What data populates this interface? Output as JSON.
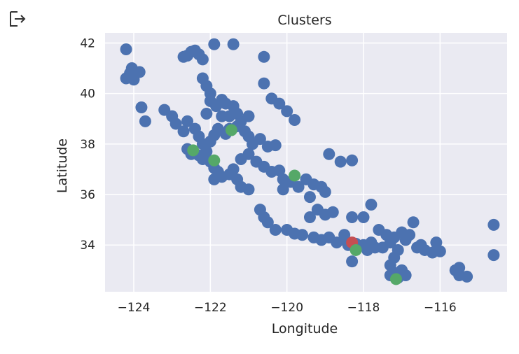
{
  "cell": {
    "output_icon": "output-arrow-icon"
  },
  "chart_data": {
    "type": "scatter",
    "title": "Clusters",
    "xlabel": "Longitude",
    "ylabel": "Latitude",
    "xlim": [
      -124.75,
      -114.25
    ],
    "ylim": [
      32.15,
      42.4
    ],
    "xticks": [
      -124,
      -122,
      -120,
      -118,
      -116
    ],
    "yticks": [
      34,
      36,
      38,
      40,
      42
    ],
    "xtick_labels": [
      "−124",
      "−122",
      "−120",
      "−118",
      "−116"
    ],
    "ytick_labels": [
      "34",
      "36",
      "38",
      "40",
      "42"
    ],
    "grid": true,
    "background": "#eaeaf2",
    "series": [
      {
        "color": "#4c72b0",
        "points": [
          [
            -124.2,
            41.75
          ],
          [
            -124.05,
            41.0
          ],
          [
            -124.2,
            40.6
          ],
          [
            -124.0,
            40.55
          ],
          [
            -123.85,
            40.85
          ],
          [
            -124.1,
            40.8
          ],
          [
            -122.6,
            41.5
          ],
          [
            -122.5,
            41.65
          ],
          [
            -122.4,
            41.7
          ],
          [
            -122.3,
            41.55
          ],
          [
            -122.2,
            41.35
          ],
          [
            -122.7,
            41.45
          ],
          [
            -121.9,
            41.95
          ],
          [
            -121.4,
            41.95
          ],
          [
            -120.6,
            41.45
          ],
          [
            -122.2,
            40.6
          ],
          [
            -122.1,
            40.3
          ],
          [
            -122.0,
            40.0
          ],
          [
            -122.0,
            39.7
          ],
          [
            -121.85,
            39.5
          ],
          [
            -121.7,
            39.75
          ],
          [
            -121.6,
            39.6
          ],
          [
            -121.4,
            39.5
          ],
          [
            -121.5,
            39.1
          ],
          [
            -121.7,
            39.1
          ],
          [
            -122.1,
            39.2
          ],
          [
            -120.6,
            40.4
          ],
          [
            -120.4,
            39.8
          ],
          [
            -120.2,
            39.6
          ],
          [
            -120.0,
            39.3
          ],
          [
            -119.8,
            38.95
          ],
          [
            -123.8,
            39.45
          ],
          [
            -123.7,
            38.9
          ],
          [
            -123.2,
            39.35
          ],
          [
            -123.0,
            39.1
          ],
          [
            -122.9,
            38.8
          ],
          [
            -122.7,
            38.5
          ],
          [
            -122.6,
            38.9
          ],
          [
            -122.4,
            38.6
          ],
          [
            -122.3,
            38.3
          ],
          [
            -122.2,
            38.0
          ],
          [
            -122.0,
            38.1
          ],
          [
            -121.9,
            38.35
          ],
          [
            -121.8,
            38.6
          ],
          [
            -121.6,
            38.4
          ],
          [
            -121.5,
            38.6
          ],
          [
            -121.3,
            38.7
          ],
          [
            -121.2,
            38.9
          ],
          [
            -121.0,
            39.1
          ],
          [
            -121.3,
            39.2
          ],
          [
            -121.1,
            38.5
          ],
          [
            -121.0,
            38.3
          ],
          [
            -120.9,
            38.0
          ],
          [
            -120.7,
            38.2
          ],
          [
            -120.5,
            37.9
          ],
          [
            -120.3,
            37.95
          ],
          [
            -122.6,
            37.8
          ],
          [
            -122.5,
            37.6
          ],
          [
            -122.3,
            37.55
          ],
          [
            -122.2,
            37.4
          ],
          [
            -122.1,
            37.7
          ],
          [
            -122.0,
            37.3
          ],
          [
            -121.9,
            37.05
          ],
          [
            -121.8,
            36.9
          ],
          [
            -121.9,
            36.6
          ],
          [
            -121.7,
            36.7
          ],
          [
            -121.5,
            36.8
          ],
          [
            -121.3,
            36.6
          ],
          [
            -121.2,
            36.3
          ],
          [
            -121.0,
            36.2
          ],
          [
            -121.4,
            37.0
          ],
          [
            -121.2,
            37.4
          ],
          [
            -121.0,
            37.6
          ],
          [
            -120.8,
            37.3
          ],
          [
            -120.6,
            37.1
          ],
          [
            -120.4,
            36.9
          ],
          [
            -120.2,
            36.95
          ],
          [
            -120.1,
            36.6
          ],
          [
            -119.9,
            36.5
          ],
          [
            -119.7,
            36.3
          ],
          [
            -119.5,
            36.6
          ],
          [
            -119.3,
            36.4
          ],
          [
            -119.1,
            36.3
          ],
          [
            -119.0,
            36.1
          ],
          [
            -120.1,
            36.2
          ],
          [
            -119.4,
            35.9
          ],
          [
            -119.2,
            35.4
          ],
          [
            -119.0,
            35.2
          ],
          [
            -118.8,
            35.3
          ],
          [
            -119.4,
            35.1
          ],
          [
            -118.6,
            37.3
          ],
          [
            -118.9,
            37.6
          ],
          [
            -118.3,
            37.35
          ],
          [
            -117.8,
            35.6
          ],
          [
            -118.0,
            35.1
          ],
          [
            -118.3,
            35.1
          ],
          [
            -120.7,
            35.4
          ],
          [
            -120.6,
            35.1
          ],
          [
            -120.5,
            34.9
          ],
          [
            -120.3,
            34.6
          ],
          [
            -120.0,
            34.6
          ],
          [
            -119.8,
            34.45
          ],
          [
            -119.6,
            34.4
          ],
          [
            -119.3,
            34.3
          ],
          [
            -119.1,
            34.2
          ],
          [
            -118.9,
            34.3
          ],
          [
            -118.7,
            34.1
          ],
          [
            -118.5,
            34.2
          ],
          [
            -118.4,
            34.0
          ],
          [
            -118.2,
            34.05
          ],
          [
            -118.0,
            34.0
          ],
          [
            -117.9,
            33.8
          ],
          [
            -117.7,
            33.9
          ],
          [
            -117.5,
            33.9
          ],
          [
            -117.3,
            34.1
          ],
          [
            -117.2,
            34.3
          ],
          [
            -117.0,
            34.5
          ],
          [
            -116.9,
            34.2
          ],
          [
            -117.1,
            33.8
          ],
          [
            -117.2,
            33.5
          ],
          [
            -117.3,
            33.2
          ],
          [
            -117.2,
            32.9
          ],
          [
            -117.1,
            32.7
          ],
          [
            -117.0,
            33.0
          ],
          [
            -116.9,
            32.8
          ],
          [
            -117.3,
            32.8
          ],
          [
            -118.3,
            33.35
          ],
          [
            -118.2,
            33.9
          ],
          [
            -117.6,
            34.6
          ],
          [
            -117.4,
            34.4
          ],
          [
            -116.8,
            34.4
          ],
          [
            -116.7,
            34.9
          ],
          [
            -116.5,
            34.0
          ],
          [
            -116.4,
            33.8
          ],
          [
            -116.2,
            33.7
          ],
          [
            -116.1,
            34.1
          ],
          [
            -116.0,
            33.75
          ],
          [
            -115.6,
            33.0
          ],
          [
            -115.5,
            32.8
          ],
          [
            -115.3,
            32.75
          ],
          [
            -115.5,
            33.1
          ],
          [
            -114.6,
            34.8
          ],
          [
            -114.6,
            33.6
          ],
          [
            -118.5,
            34.4
          ],
          [
            -117.8,
            34.1
          ],
          [
            -116.6,
            33.9
          ]
        ]
      },
      {
        "color": "#c44e52",
        "points": [
          [
            -118.3,
            34.1
          ]
        ]
      },
      {
        "color": "#55a868",
        "points": [
          [
            -121.45,
            38.55
          ],
          [
            -122.45,
            37.75
          ],
          [
            -121.9,
            37.35
          ],
          [
            -119.8,
            36.75
          ],
          [
            -118.2,
            33.8
          ],
          [
            -117.15,
            32.65
          ]
        ]
      }
    ]
  }
}
